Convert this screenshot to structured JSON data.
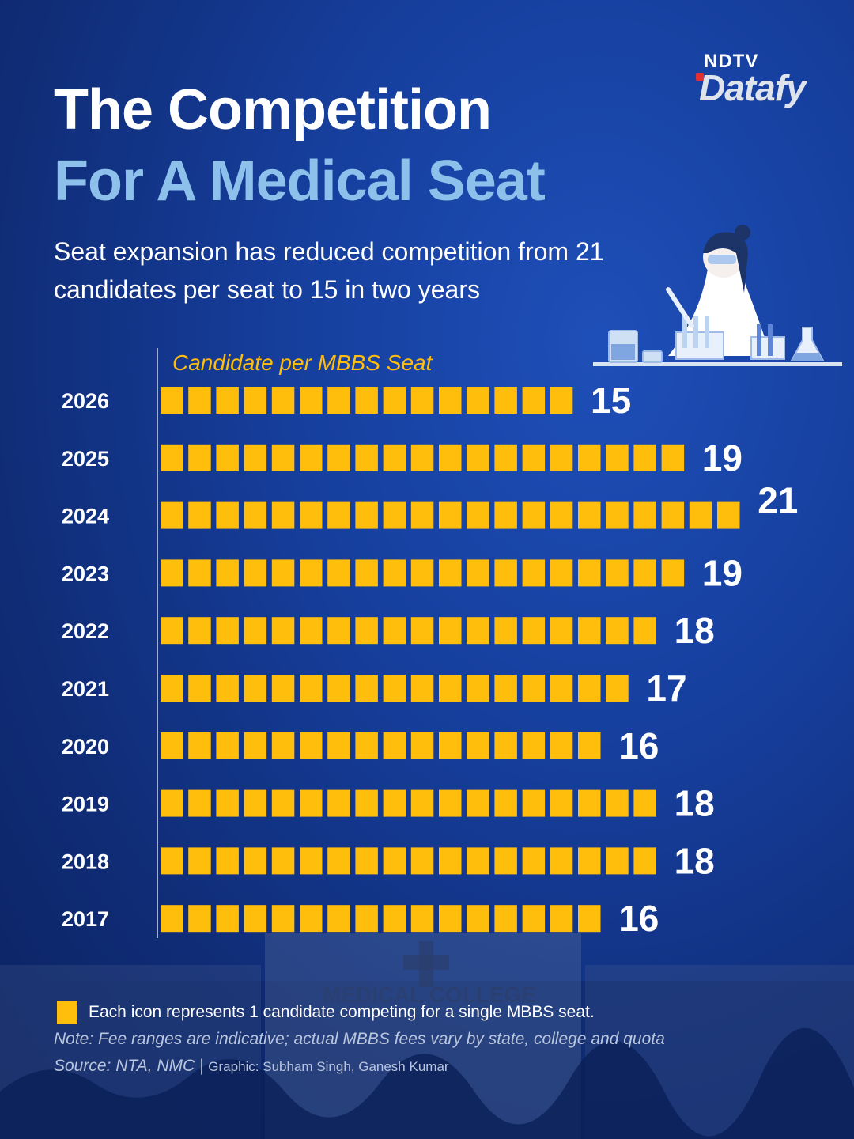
{
  "brand": {
    "top": "NDTV",
    "main": "Datafy"
  },
  "header": {
    "title_line1": "The Competition",
    "title_line2": "For A Medical Seat",
    "subtitle": "Seat expansion has reduced competition from 21 candidates per seat to 15 in two years"
  },
  "colors": {
    "icon": "#ffbe0b",
    "title_accent": "#8ec0ec",
    "background": "#163f9e"
  },
  "chart_data": {
    "type": "bar",
    "orientation": "horizontal",
    "encoding": "unit-icons",
    "title": "Candidate per MBBS Seat",
    "categories": [
      "2026",
      "2025",
      "2024",
      "2023",
      "2022",
      "2021",
      "2020",
      "2019",
      "2018",
      "2017"
    ],
    "values": [
      15,
      19,
      21,
      19,
      18,
      17,
      16,
      18,
      18,
      16
    ],
    "grid": false
  },
  "footer": {
    "legend": "Each icon represents 1 candidate competing for a single MBBS seat.",
    "note": "Note: Fee ranges are indicative; actual MBBS fees vary by state, college and quota",
    "source": "Source: NTA, NMC |",
    "credit": "Graphic: Subham Singh, Ganesh Kumar",
    "building_sign": "MEDICAL COLLEGE"
  }
}
